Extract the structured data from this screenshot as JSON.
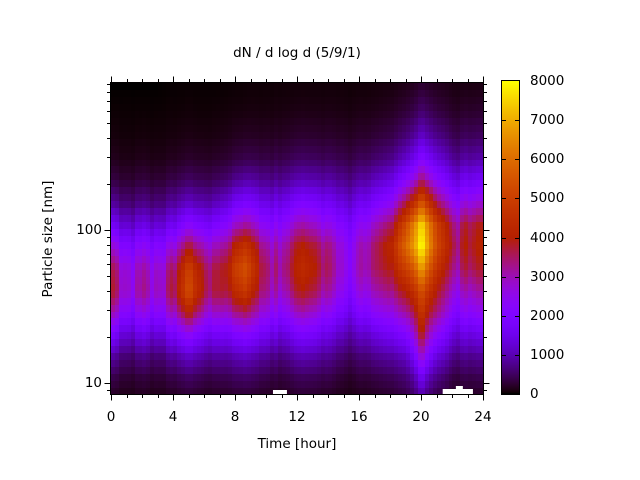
{
  "figure": {
    "title": "dN / d log d (5/9/1)",
    "background_color": "#ffffff",
    "text_color": "#000000"
  },
  "x_axis": {
    "label": "Time [hour]",
    "min": 0,
    "max": 24,
    "major_ticks": [
      0,
      4,
      8,
      12,
      16,
      20,
      24
    ],
    "minor_ticks": [
      1,
      2,
      3,
      5,
      6,
      7,
      9,
      10,
      11,
      13,
      14,
      15,
      17,
      18,
      19,
      21,
      22,
      23
    ]
  },
  "y_axis": {
    "label": "Particle size [nm]",
    "scale": "log",
    "min": 8.5,
    "max": 914,
    "labeled_ticks": [
      10,
      100
    ],
    "minor_ticks": [
      9,
      20,
      30,
      40,
      50,
      60,
      70,
      80,
      90,
      200,
      300,
      400,
      500,
      600,
      700,
      800,
      900
    ]
  },
  "colorbar": {
    "min": 0,
    "max": 8000,
    "ticks": [
      0,
      1000,
      2000,
      3000,
      4000,
      5000,
      6000,
      7000,
      8000
    ],
    "palette_name": "gnuplot-black-purple-red-yellow",
    "palette_stops": [
      "#000000",
      "#5a00b4",
      "#8004ff",
      "#9c0db4",
      "#b42000",
      "#ca3e00",
      "#dd6c00",
      "#efab00",
      "#ffff00"
    ]
  },
  "chart_data": {
    "type": "heatmap",
    "title": "dN / d log d (5/9/1)",
    "xlabel": "Time [hour]",
    "ylabel": "Particle size [nm]",
    "zlabel": "dN/dlogd",
    "zlim": [
      0,
      8000
    ],
    "x_hours": [
      0,
      1,
      2,
      3,
      4,
      4.5,
      5,
      5.5,
      6,
      7,
      8,
      8.5,
      9,
      10,
      11,
      12,
      13,
      14,
      15,
      15.5,
      16,
      17,
      18,
      19,
      19.5,
      20,
      20.5,
      21,
      21.5,
      22,
      23,
      24
    ],
    "size_nm": [
      8,
      11,
      15,
      21,
      29,
      40,
      56,
      78,
      108,
      150,
      210,
      290,
      420,
      600,
      850
    ],
    "values_by_size": [
      [
        150,
        100,
        150,
        100,
        150,
        180,
        200,
        180,
        150,
        150,
        200,
        200,
        200,
        150,
        150,
        200,
        200,
        150,
        100,
        90,
        100,
        150,
        200,
        300,
        450,
        800,
        500,
        300,
        250,
        150,
        150,
        150
      ],
      [
        400,
        300,
        350,
        300,
        400,
        450,
        500,
        450,
        400,
        400,
        500,
        500,
        500,
        400,
        350,
        450,
        450,
        400,
        250,
        220,
        300,
        350,
        450,
        600,
        900,
        1600,
        1000,
        700,
        550,
        350,
        400,
        400
      ],
      [
        900,
        650,
        800,
        650,
        900,
        1000,
        1100,
        1000,
        900,
        850,
        1000,
        1050,
        1000,
        850,
        750,
        950,
        950,
        800,
        550,
        500,
        600,
        750,
        900,
        1100,
        1700,
        2800,
        1900,
        1300,
        1100,
        750,
        800,
        800
      ],
      [
        1900,
        1400,
        1700,
        1400,
        1900,
        2100,
        2300,
        2000,
        1800,
        1700,
        2000,
        2050,
        2000,
        1700,
        1500,
        1800,
        1800,
        1500,
        1100,
        1000,
        1200,
        1400,
        1700,
        2000,
        2700,
        3900,
        2900,
        2300,
        1900,
        1400,
        1500,
        1500
      ],
      [
        3100,
        2400,
        2800,
        2400,
        3100,
        3500,
        3900,
        3400,
        3000,
        2800,
        3300,
        3350,
        3200,
        2700,
        2500,
        2900,
        2800,
        2400,
        1800,
        1650,
        2000,
        2300,
        2600,
        3100,
        3600,
        4600,
        3800,
        3300,
        2800,
        2200,
        2400,
        2400
      ],
      [
        3900,
        3100,
        3600,
        3100,
        3900,
        4500,
        5100,
        4400,
        3900,
        3700,
        4400,
        4600,
        4200,
        3400,
        3300,
        3800,
        3700,
        3200,
        2400,
        2200,
        2700,
        3000,
        3400,
        4000,
        4500,
        5200,
        4600,
        3900,
        3400,
        2800,
        3100,
        3100
      ],
      [
        3700,
        3000,
        3400,
        3000,
        3700,
        4200,
        4800,
        4200,
        3800,
        3700,
        5000,
        5200,
        4800,
        3600,
        3700,
        4200,
        4100,
        3600,
        2700,
        2500,
        3100,
        3500,
        4000,
        5000,
        5600,
        6600,
        5600,
        4600,
        4000,
        3400,
        3800,
        3800
      ],
      [
        2800,
        2300,
        2600,
        2300,
        2800,
        3200,
        3600,
        3200,
        3000,
        3000,
        4200,
        4400,
        4200,
        3200,
        3400,
        3900,
        3800,
        3400,
        2600,
        2400,
        3000,
        3500,
        4300,
        5900,
        6800,
        7800,
        6600,
        5200,
        4500,
        3800,
        4100,
        4100
      ],
      [
        1700,
        1400,
        1600,
        1400,
        1700,
        1950,
        2200,
        2000,
        1900,
        2000,
        2900,
        3000,
        3000,
        2400,
        2600,
        3000,
        2900,
        2600,
        2100,
        2000,
        2400,
        2900,
        3600,
        5300,
        6400,
        7400,
        6300,
        5000,
        4300,
        3500,
        3900,
        3900
      ],
      [
        850,
        700,
        800,
        700,
        900,
        1000,
        1100,
        1000,
        1000,
        1100,
        1700,
        1750,
        1800,
        1500,
        1700,
        1900,
        1900,
        1700,
        1400,
        1350,
        1600,
        1900,
        2400,
        3700,
        4500,
        5400,
        4600,
        3600,
        3100,
        2500,
        2800,
        2800
      ],
      [
        350,
        300,
        350,
        300,
        400,
        450,
        500,
        450,
        450,
        500,
        800,
        850,
        900,
        800,
        900,
        1000,
        1000,
        950,
        800,
        780,
        900,
        1100,
        1400,
        2200,
        2700,
        3400,
        2900,
        2300,
        1950,
        1500,
        1700,
        1700
      ],
      [
        150,
        120,
        150,
        120,
        170,
        190,
        220,
        200,
        200,
        220,
        350,
        370,
        400,
        380,
        450,
        500,
        500,
        480,
        420,
        400,
        470,
        570,
        750,
        1200,
        1550,
        2100,
        1750,
        1350,
        1150,
        850,
        950,
        950
      ],
      [
        60,
        50,
        60,
        50,
        70,
        80,
        90,
        80,
        80,
        90,
        150,
        160,
        170,
        170,
        200,
        230,
        230,
        220,
        200,
        190,
        220,
        270,
        360,
        600,
        800,
        1100,
        900,
        700,
        600,
        420,
        480,
        480
      ],
      [
        20,
        20,
        20,
        20,
        30,
        30,
        40,
        30,
        30,
        40,
        60,
        60,
        70,
        70,
        90,
        100,
        100,
        100,
        90,
        85,
        100,
        120,
        170,
        280,
        380,
        550,
        450,
        330,
        280,
        200,
        230,
        230
      ],
      [
        0,
        0,
        0,
        0,
        10,
        10,
        10,
        10,
        10,
        10,
        20,
        20,
        30,
        30,
        40,
        40,
        40,
        40,
        40,
        35,
        40,
        50,
        70,
        120,
        170,
        250,
        200,
        150,
        130,
        90,
        100,
        100
      ]
    ],
    "streaks": [
      {
        "t": 0.7,
        "w": 0.22,
        "f": 0.8
      },
      {
        "t": 1.35,
        "w": 0.25,
        "f": 0.74
      },
      {
        "t": 1.95,
        "w": 0.18,
        "f": 0.85
      },
      {
        "t": 2.6,
        "w": 0.25,
        "f": 0.78
      },
      {
        "t": 3.3,
        "w": 0.22,
        "f": 0.8
      },
      {
        "t": 4.15,
        "w": 0.18,
        "f": 0.88
      },
      {
        "t": 6.3,
        "w": 0.2,
        "f": 0.87
      },
      {
        "t": 7.5,
        "w": 0.18,
        "f": 0.9
      },
      {
        "t": 9.7,
        "w": 0.18,
        "f": 0.9
      },
      {
        "t": 10.35,
        "w": 0.2,
        "f": 0.84
      },
      {
        "t": 10.95,
        "w": 0.22,
        "f": 0.8
      },
      {
        "t": 11.45,
        "w": 0.18,
        "f": 0.88
      },
      {
        "t": 13.6,
        "w": 0.2,
        "f": 0.9
      },
      {
        "t": 14.6,
        "w": 0.18,
        "f": 0.92
      },
      {
        "t": 15.35,
        "w": 0.22,
        "f": 0.85
      },
      {
        "t": 16.5,
        "w": 0.2,
        "f": 0.88
      },
      {
        "t": 18.2,
        "w": 0.18,
        "f": 0.93
      },
      {
        "t": 22.35,
        "w": 0.22,
        "f": 0.84
      },
      {
        "t": 23.2,
        "w": 0.2,
        "f": 0.9
      },
      {
        "t": 5.0,
        "w": 0.25,
        "f": 1.07
      },
      {
        "t": 8.7,
        "w": 0.25,
        "f": 1.07
      },
      {
        "t": 12.4,
        "w": 0.25,
        "f": 1.05
      },
      {
        "t": 20.0,
        "w": 0.3,
        "f": 1.05
      }
    ],
    "bottom_gaps": [
      {
        "t0": 10.45,
        "t1": 11.35,
        "h": 4
      },
      {
        "t0": 21.4,
        "t1": 23.35,
        "h": 5
      },
      {
        "t0": 22.25,
        "t1": 22.7,
        "h": 8
      }
    ]
  }
}
